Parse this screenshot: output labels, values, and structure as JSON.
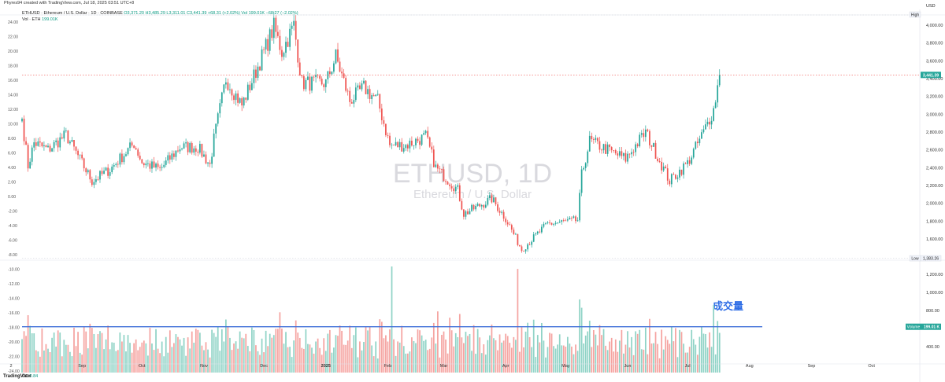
{
  "header": {
    "credit": "Phyres94 created with TradingView.com, Jul 18, 2025 03:51 UTC+8",
    "symbol_line": "ETHUSD · Ethereum / U.S. Dollar · 1D · COINBASE",
    "ohlc_text": "O3,371.20 H3,485.29 L3,311.01 C3,441.39 +68.31 (+2.02%)",
    "vol_text": "Vol 199.01K −68.27 (−2.02%)",
    "vol_label": "Vol · ETH",
    "vol_value": "199.01K"
  },
  "footer": {
    "brand": "TradingView",
    "cc_label": "CC",
    "cc_value": "0.84"
  },
  "watermark": {
    "title": "ETHUSD, 1D",
    "subtitle": "Ethereum / U.S. Dollar"
  },
  "annotation": {
    "volume_cn": "成交量"
  },
  "colors": {
    "up": "#26a69a",
    "down": "#ef5350",
    "vol_up": "#8fd3c6",
    "vol_down": "#f5a3a0",
    "hline": "#3f6fd9"
  },
  "chart_data": {
    "type": "candlestick",
    "x_axis": {
      "labels": [
        "2",
        "Sep",
        "Oct",
        "Nov",
        "Dec",
        "2025",
        "Feb",
        "Mar",
        "Apr",
        "May",
        "Jun",
        "Jul",
        "Aug",
        "Sep",
        "Oct"
      ],
      "start_date": "2024-08-02",
      "end_date": "2025-10-24"
    },
    "price_axis": {
      "currency": "USD",
      "ticks": [
        "4,000.00",
        "3,800.00",
        "3,600.00",
        "3,400.00",
        "3,200.00",
        "3,000.00",
        "2,800.00",
        "2,600.00",
        "2,400.00",
        "2,200.00",
        "2,000.00",
        "1,800.00",
        "1,600.00"
      ],
      "high_label": "High",
      "low_label": "Low",
      "low_value": "1,383.26",
      "last_price": "3,441.39",
      "range": [
        1383.26,
        4107.8
      ]
    },
    "volume_axis": {
      "ticks": [
        "1,200.00",
        "1,000.00",
        "800.00",
        "400.00"
      ],
      "volume_label": "Volume",
      "volume_value": "199.01 K",
      "hline_value": 620
    },
    "left_scale": {
      "ticks": [
        "24.00",
        "22.00",
        "20.00",
        "18.00",
        "16.00",
        "14.00",
        "12.00",
        "10.00",
        "8.00",
        "6.00",
        "4.00",
        "2.00",
        "0.00",
        "-2.00",
        "-4.00",
        "-6.00",
        "-8.00",
        "-10.00",
        "-12.00",
        "-14.00",
        "-16.00",
        "-18.00",
        "-20.00",
        "-22.00",
        "-24.00"
      ]
    },
    "anchors": [
      [
        "2024-08-02",
        2950
      ],
      [
        "2024-08-05",
        2420
      ],
      [
        "2024-08-08",
        2680
      ],
      [
        "2024-08-15",
        2600
      ],
      [
        "2024-08-24",
        2770
      ],
      [
        "2024-09-06",
        2250
      ],
      [
        "2024-09-15",
        2380
      ],
      [
        "2024-09-27",
        2670
      ],
      [
        "2024-10-01",
        2460
      ],
      [
        "2024-10-10",
        2380
      ],
      [
        "2024-10-20",
        2630
      ],
      [
        "2024-10-29",
        2630
      ],
      [
        "2024-11-04",
        2430
      ],
      [
        "2024-11-06",
        2720
      ],
      [
        "2024-11-12",
        3400
      ],
      [
        "2024-11-20",
        3100
      ],
      [
        "2024-12-01",
        3700
      ],
      [
        "2024-12-06",
        3980
      ],
      [
        "2024-12-10",
        3700
      ],
      [
        "2024-12-16",
        4000
      ],
      [
        "2024-12-20",
        3350
      ],
      [
        "2025-01-01",
        3350
      ],
      [
        "2025-01-06",
        3650
      ],
      [
        "2025-01-13",
        3150
      ],
      [
        "2025-01-20",
        3300
      ],
      [
        "2025-01-27",
        3150
      ],
      [
        "2025-02-02",
        2650
      ],
      [
        "2025-02-10",
        2650
      ],
      [
        "2025-02-20",
        2750
      ],
      [
        "2025-02-25",
        2400
      ],
      [
        "2025-03-08",
        2150
      ],
      [
        "2025-03-11",
        1880
      ],
      [
        "2025-03-25",
        2050
      ],
      [
        "2025-04-01",
        1830
      ],
      [
        "2025-04-09",
        1480
      ],
      [
        "2025-04-22",
        1770
      ],
      [
        "2025-05-07",
        1810
      ],
      [
        "2025-05-09",
        2320
      ],
      [
        "2025-05-13",
        2700
      ],
      [
        "2025-05-31",
        2500
      ],
      [
        "2025-06-10",
        2800
      ],
      [
        "2025-06-22",
        2250
      ],
      [
        "2025-07-01",
        2450
      ],
      [
        "2025-07-09",
        2800
      ],
      [
        "2025-07-14",
        3050
      ],
      [
        "2025-07-17",
        3441.39
      ]
    ],
    "volume_spikes": [
      [
        "2025-02-03",
        1310
      ],
      [
        "2025-04-07",
        1260
      ],
      [
        "2025-05-09",
        830
      ],
      [
        "2025-02-26",
        790
      ],
      [
        "2025-07-14",
        860
      ],
      [
        "2024-12-09",
        780
      ],
      [
        "2025-03-04",
        720
      ],
      [
        "2024-11-12",
        700
      ]
    ]
  }
}
